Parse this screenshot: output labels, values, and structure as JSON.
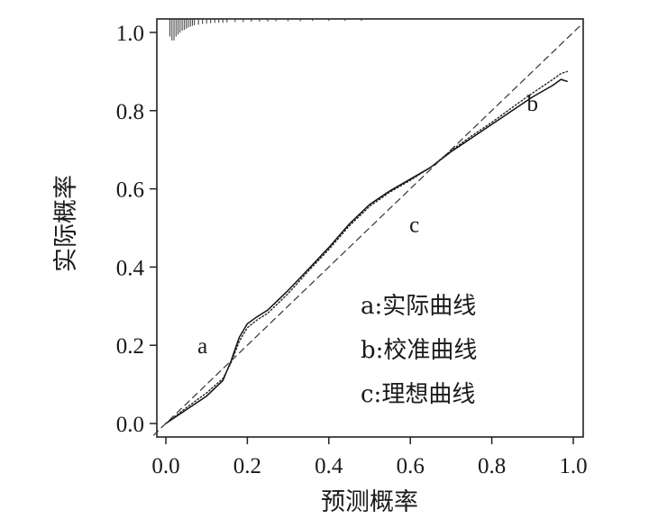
{
  "chart_data": {
    "type": "line",
    "xlabel": "预测概率",
    "ylabel": "实际概率",
    "xlim": [
      0.0,
      1.0
    ],
    "ylim": [
      0.0,
      1.0
    ],
    "xticks": [
      "0.0",
      "0.2",
      "0.4",
      "0.6",
      "0.8",
      "1.0"
    ],
    "yticks": [
      "0.0",
      "0.2",
      "0.4",
      "0.6",
      "0.8",
      "1.0"
    ],
    "grid": false,
    "legend_position": "lower-right",
    "legend": [
      {
        "text": "a:实际曲线"
      },
      {
        "text": "b:校准曲线"
      },
      {
        "text": "c:理想曲线"
      }
    ],
    "curve_tags": [
      {
        "text": "a",
        "x": 0.09,
        "y": 0.18
      },
      {
        "text": "b",
        "x": 0.9,
        "y": 0.8
      },
      {
        "text": "c",
        "x": 0.61,
        "y": 0.49
      }
    ],
    "series": [
      {
        "key": "apparent",
        "style": "solid",
        "points": [
          [
            0.0,
            0.0
          ],
          [
            0.05,
            0.035
          ],
          [
            0.1,
            0.07
          ],
          [
            0.14,
            0.11
          ],
          [
            0.16,
            0.16
          ],
          [
            0.18,
            0.22
          ],
          [
            0.2,
            0.255
          ],
          [
            0.22,
            0.27
          ],
          [
            0.25,
            0.29
          ],
          [
            0.3,
            0.34
          ],
          [
            0.35,
            0.395
          ],
          [
            0.4,
            0.45
          ],
          [
            0.45,
            0.51
          ],
          [
            0.5,
            0.56
          ],
          [
            0.55,
            0.595
          ],
          [
            0.6,
            0.625
          ],
          [
            0.65,
            0.655
          ],
          [
            0.7,
            0.695
          ],
          [
            0.75,
            0.73
          ],
          [
            0.8,
            0.765
          ],
          [
            0.85,
            0.8
          ],
          [
            0.9,
            0.835
          ],
          [
            0.95,
            0.865
          ],
          [
            0.97,
            0.88
          ],
          [
            0.985,
            0.875
          ]
        ]
      },
      {
        "key": "bias-corrected",
        "style": "dotted",
        "points": [
          [
            0.0,
            0.0
          ],
          [
            0.05,
            0.04
          ],
          [
            0.1,
            0.078
          ],
          [
            0.14,
            0.115
          ],
          [
            0.16,
            0.155
          ],
          [
            0.18,
            0.21
          ],
          [
            0.2,
            0.245
          ],
          [
            0.22,
            0.262
          ],
          [
            0.25,
            0.282
          ],
          [
            0.3,
            0.332
          ],
          [
            0.35,
            0.39
          ],
          [
            0.4,
            0.445
          ],
          [
            0.45,
            0.505
          ],
          [
            0.5,
            0.555
          ],
          [
            0.55,
            0.592
          ],
          [
            0.6,
            0.622
          ],
          [
            0.65,
            0.655
          ],
          [
            0.7,
            0.698
          ],
          [
            0.75,
            0.735
          ],
          [
            0.8,
            0.77
          ],
          [
            0.85,
            0.808
          ],
          [
            0.9,
            0.845
          ],
          [
            0.95,
            0.88
          ],
          [
            0.97,
            0.895
          ],
          [
            0.985,
            0.9
          ]
        ]
      },
      {
        "key": "ideal",
        "style": "dashed",
        "points": [
          [
            0.0,
            0.0
          ],
          [
            1.0,
            1.0
          ]
        ]
      }
    ],
    "rug_x": [
      0.01,
      0.015,
      0.02,
      0.025,
      0.03,
      0.035,
      0.04,
      0.045,
      0.05,
      0.055,
      0.06,
      0.065,
      0.07,
      0.08,
      0.09,
      0.1,
      0.11,
      0.12,
      0.13,
      0.14,
      0.15,
      0.17,
      0.19,
      0.21,
      0.23,
      0.25,
      0.27,
      0.3,
      0.33,
      0.36,
      0.4,
      0.44,
      0.48
    ],
    "rug_heights": [
      0.045,
      0.055,
      0.055,
      0.045,
      0.04,
      0.035,
      0.03,
      0.028,
      0.025,
      0.022,
      0.02,
      0.018,
      0.016,
      0.015,
      0.013,
      0.012,
      0.011,
      0.01,
      0.01,
      0.01,
      0.009,
      0.008,
      0.008,
      0.007,
      0.007,
      0.007,
      0.006,
      0.006,
      0.006,
      0.005,
      0.005,
      0.005,
      0.005
    ]
  }
}
